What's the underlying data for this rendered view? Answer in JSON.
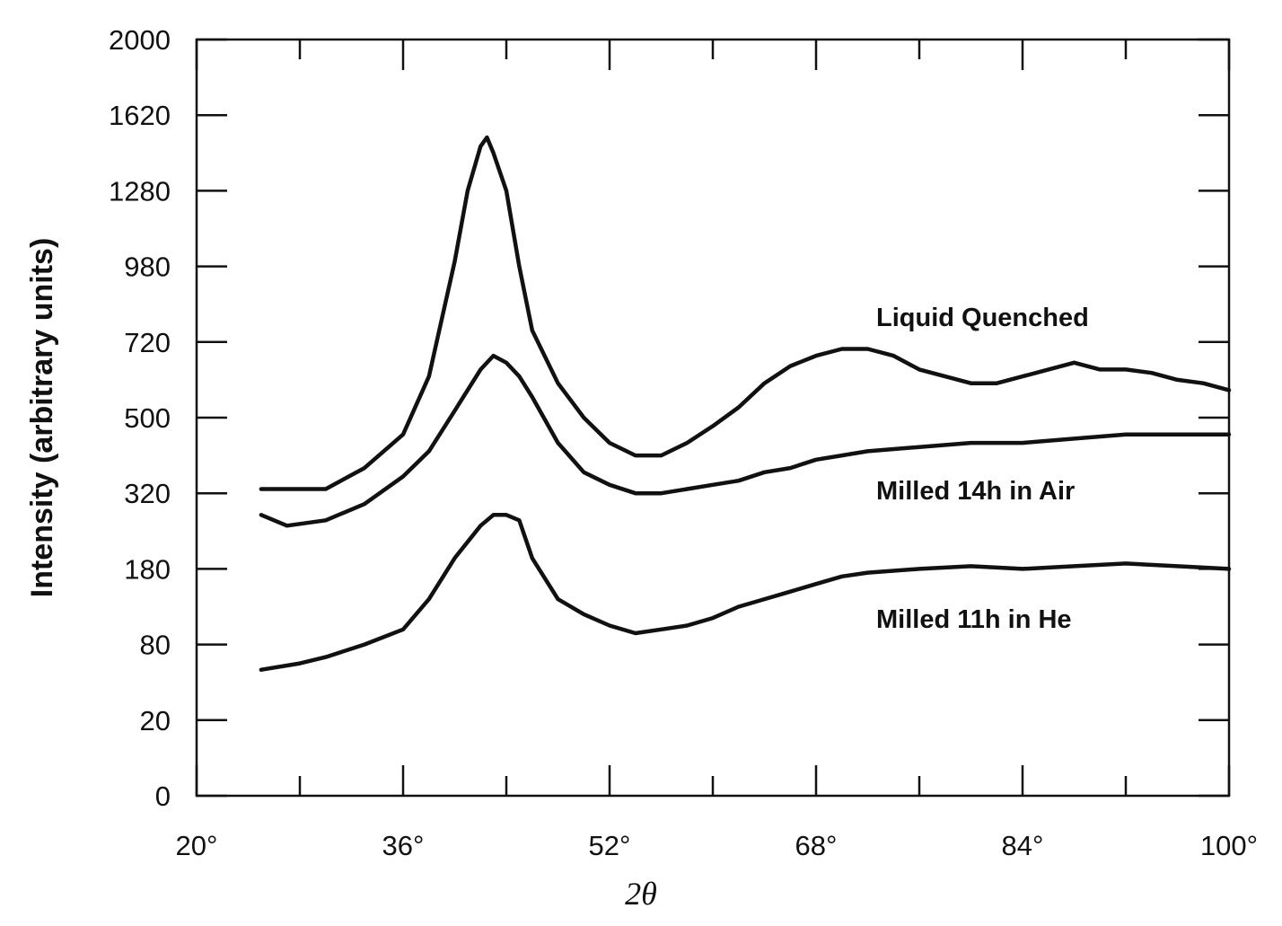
{
  "chart_data": {
    "type": "line",
    "title": "",
    "xlabel": "2θ",
    "ylabel": "Intensity (arbitrary units)",
    "xlim": [
      20,
      100
    ],
    "x_ticks": [
      20,
      28,
      36,
      44,
      52,
      60,
      68,
      76,
      84,
      92,
      100
    ],
    "x_tick_labels": [
      "20°",
      "36°",
      "52°",
      "68°",
      "84°",
      "100°"
    ],
    "x_tick_label_values": [
      20,
      36,
      52,
      68,
      84,
      100
    ],
    "y_tick_labels": [
      "0",
      "20",
      "80",
      "180",
      "320",
      "500",
      "720",
      "980",
      "1280",
      "1620",
      "2000"
    ],
    "y_scale": "nonlinear (square-root-like), tick labels evenly spaced",
    "grid": false,
    "legend": "none (inline labels at right)",
    "series": [
      {
        "name": "Liquid Quenched",
        "x": [
          25,
          28,
          30,
          33,
          36,
          38,
          40,
          41,
          42,
          42.5,
          43,
          44,
          45,
          46,
          48,
          50,
          52,
          54,
          56,
          58,
          60,
          62,
          64,
          66,
          68,
          70,
          72,
          74,
          76,
          78,
          80,
          82,
          84,
          86,
          88,
          90,
          92,
          94,
          96,
          98,
          100
        ],
        "y": [
          330,
          330,
          330,
          380,
          460,
          620,
          1000,
          1280,
          1480,
          1520,
          1450,
          1280,
          980,
          760,
          600,
          500,
          440,
          410,
          410,
          440,
          480,
          530,
          600,
          650,
          680,
          700,
          700,
          680,
          640,
          620,
          600,
          600,
          620,
          640,
          660,
          640,
          640,
          630,
          610,
          600,
          580
        ]
      },
      {
        "name": "Milled 14h in Air",
        "x": [
          25,
          27,
          30,
          33,
          36,
          38,
          40,
          42,
          43,
          44,
          45,
          46,
          48,
          50,
          52,
          54,
          56,
          58,
          60,
          62,
          64,
          66,
          68,
          70,
          72,
          76,
          80,
          84,
          88,
          92,
          96,
          100
        ],
        "y": [
          280,
          260,
          270,
          300,
          360,
          420,
          520,
          640,
          680,
          660,
          620,
          560,
          440,
          370,
          340,
          320,
          320,
          330,
          340,
          350,
          370,
          380,
          400,
          410,
          420,
          430,
          440,
          440,
          450,
          460,
          460,
          460
        ]
      },
      {
        "name": "Milled 11h in He",
        "x": [
          25,
          28,
          30,
          33,
          36,
          38,
          40,
          42,
          43,
          44,
          45,
          46,
          48,
          50,
          52,
          54,
          56,
          58,
          60,
          62,
          64,
          66,
          68,
          70,
          72,
          76,
          80,
          84,
          88,
          92,
          96,
          100
        ],
        "y": [
          60,
          65,
          70,
          80,
          100,
          140,
          200,
          260,
          280,
          280,
          270,
          200,
          140,
          120,
          105,
          95,
          100,
          105,
          115,
          130,
          140,
          150,
          160,
          170,
          175,
          180,
          185,
          180,
          185,
          190,
          185,
          180
        ]
      }
    ]
  }
}
